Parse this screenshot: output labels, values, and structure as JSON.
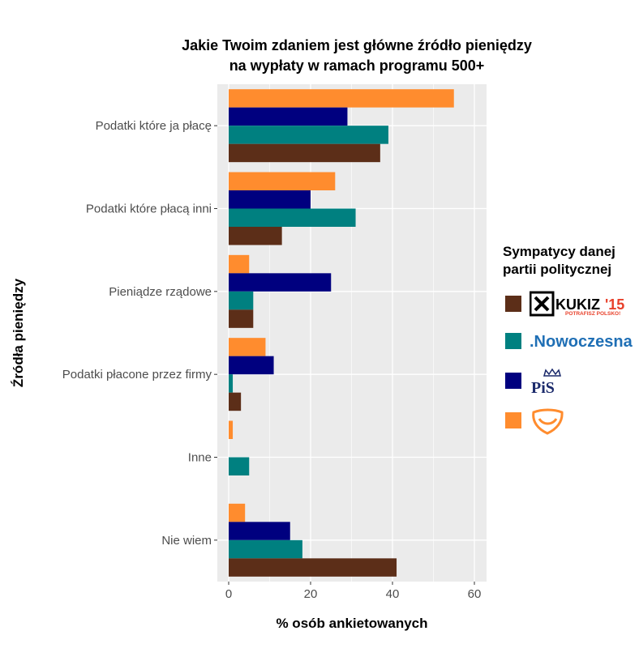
{
  "chart_data": {
    "type": "bar",
    "title": "Jakie Twoim zdaniem jest główne źródło pieniędzy",
    "subtitle": "na wypłaty w ramach programu 500+",
    "xlabel": "% osób ankietowanych",
    "ylabel": "Źródła pieniędzy",
    "categories": [
      "Podatki które ja płacę",
      "Podatki które płacą inni",
      "Pieniądze rządowe",
      "Podatki płacone przez firmy",
      "Inne",
      "Nie wiem"
    ],
    "xlim": [
      0,
      60
    ],
    "x_ticks": [
      "0",
      "20",
      "40",
      "60"
    ],
    "orientation": "horizontal",
    "grid": true,
    "legend": {
      "title_line1": "Sympatycy danej",
      "title_line2": "partii politycznej",
      "placement": "right"
    },
    "series": [
      {
        "key": "po",
        "logo": "po-logo-icon",
        "color": "#FF8C2E",
        "values": [
          55,
          26,
          5,
          9,
          1,
          4
        ]
      },
      {
        "key": "pis",
        "logo": "pis-logo-icon",
        "color": "#00007F",
        "values": [
          29,
          20,
          25,
          11,
          0,
          15
        ]
      },
      {
        "key": "nowoczesna",
        "logo": "nowoczesna-logo-icon",
        "color": "#008080",
        "values": [
          39,
          31,
          6,
          1,
          5,
          18
        ]
      },
      {
        "key": "kukiz",
        "logo": "kukiz-logo-icon",
        "color": "#5C2E18",
        "values": [
          37,
          13,
          6,
          3,
          0,
          41
        ]
      }
    ]
  },
  "logos": {
    "kukiz_text": "KUKIZ",
    "kukiz_num": "'15",
    "kukiz_sub": "POTRAFISZ POLSKO!",
    "nowoczesna_text": ".Nowoczesna",
    "pis_text": "PiS"
  }
}
